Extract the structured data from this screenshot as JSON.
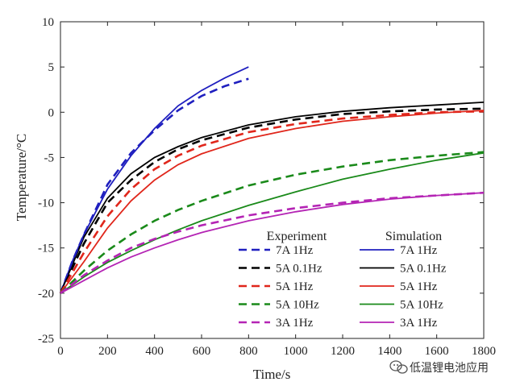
{
  "chart_data": {
    "type": "line",
    "title": "",
    "xlabel": "Time/s",
    "ylabel": "Temperature/°C",
    "xlim": [
      0,
      1800
    ],
    "ylim": [
      -25,
      10
    ],
    "xticks": [
      0,
      200,
      400,
      600,
      800,
      1000,
      1200,
      1400,
      1600,
      1800
    ],
    "yticks": [
      -25,
      -20,
      -15,
      -10,
      -5,
      0,
      5,
      10
    ],
    "grid": false,
    "legend": {
      "placement": "bottom-right",
      "experiment_title": "Experiment",
      "simulation_title": "Simulation"
    },
    "series": [
      {
        "name": "7A 1Hz",
        "group": "Experiment",
        "color": "#1f1fbf",
        "style": "dashed",
        "x": [
          0,
          50,
          100,
          200,
          300,
          400,
          500,
          600,
          700,
          800
        ],
        "y": [
          -20,
          -16.5,
          -13.5,
          -8.0,
          -4.5,
          -2.0,
          0.2,
          1.8,
          2.9,
          3.7
        ]
      },
      {
        "name": "5A 0.1Hz",
        "group": "Experiment",
        "color": "#000000",
        "style": "dashed",
        "x": [
          0,
          100,
          200,
          300,
          400,
          500,
          600,
          800,
          1000,
          1200,
          1400,
          1600,
          1800
        ],
        "y": [
          -20,
          -14.5,
          -10.0,
          -7.5,
          -5.5,
          -4.1,
          -3.1,
          -1.7,
          -0.8,
          -0.2,
          0.1,
          0.3,
          0.4
        ]
      },
      {
        "name": "5A 1Hz",
        "group": "Experiment",
        "color": "#e0261b",
        "style": "dashed",
        "x": [
          0,
          100,
          200,
          300,
          400,
          500,
          600,
          800,
          1000,
          1200,
          1400,
          1600,
          1800
        ],
        "y": [
          -20,
          -15.5,
          -11.5,
          -8.5,
          -6.3,
          -4.8,
          -3.7,
          -2.2,
          -1.3,
          -0.7,
          -0.3,
          0.0,
          0.1
        ]
      },
      {
        "name": "5A 10Hz",
        "group": "Experiment",
        "color": "#1a8a1a",
        "style": "dashed",
        "x": [
          0,
          100,
          200,
          300,
          400,
          500,
          600,
          800,
          1000,
          1200,
          1400,
          1600,
          1800
        ],
        "y": [
          -20,
          -17.5,
          -15.3,
          -13.5,
          -12.0,
          -10.8,
          -9.8,
          -8.1,
          -6.9,
          -6.0,
          -5.3,
          -4.8,
          -4.4
        ]
      },
      {
        "name": "3A 1Hz",
        "group": "Experiment",
        "color": "#b424b4",
        "style": "dashed",
        "x": [
          0,
          100,
          200,
          300,
          400,
          500,
          600,
          800,
          1000,
          1200,
          1400,
          1600,
          1800
        ],
        "y": [
          -20,
          -18.0,
          -16.4,
          -15.0,
          -14.0,
          -13.2,
          -12.5,
          -11.4,
          -10.6,
          -10.0,
          -9.5,
          -9.2,
          -8.9
        ]
      },
      {
        "name": "7A 1Hz",
        "group": "Simulation",
        "color": "#1f1fbf",
        "style": "solid",
        "x": [
          0,
          50,
          100,
          200,
          300,
          400,
          500,
          600,
          700,
          800
        ],
        "y": [
          -20,
          -16.5,
          -13.5,
          -8.5,
          -4.8,
          -1.8,
          0.7,
          2.4,
          3.8,
          5.0
        ]
      },
      {
        "name": "5A 0.1Hz",
        "group": "Simulation",
        "color": "#000000",
        "style": "solid",
        "x": [
          0,
          100,
          200,
          300,
          400,
          500,
          600,
          800,
          1000,
          1200,
          1400,
          1600,
          1800
        ],
        "y": [
          -20,
          -13.8,
          -9.5,
          -6.8,
          -5.0,
          -3.8,
          -2.8,
          -1.4,
          -0.5,
          0.1,
          0.5,
          0.8,
          1.1
        ]
      },
      {
        "name": "5A 1Hz",
        "group": "Simulation",
        "color": "#e0261b",
        "style": "solid",
        "x": [
          0,
          100,
          200,
          300,
          400,
          500,
          600,
          800,
          1000,
          1200,
          1400,
          1600,
          1800
        ],
        "y": [
          -20,
          -16.5,
          -12.8,
          -9.8,
          -7.5,
          -5.8,
          -4.6,
          -2.9,
          -1.8,
          -1.0,
          -0.5,
          -0.1,
          0.2
        ]
      },
      {
        "name": "5A 10Hz",
        "group": "Simulation",
        "color": "#1a8a1a",
        "style": "solid",
        "x": [
          0,
          100,
          200,
          300,
          400,
          500,
          600,
          800,
          1000,
          1200,
          1400,
          1600,
          1800
        ],
        "y": [
          -20,
          -18.2,
          -16.6,
          -15.3,
          -14.1,
          -13.0,
          -12.0,
          -10.3,
          -8.8,
          -7.4,
          -6.3,
          -5.3,
          -4.5
        ]
      },
      {
        "name": "3A 1Hz",
        "group": "Simulation",
        "color": "#b424b4",
        "style": "solid",
        "x": [
          0,
          100,
          200,
          300,
          400,
          500,
          600,
          800,
          1000,
          1200,
          1400,
          1600,
          1800
        ],
        "y": [
          -20,
          -18.6,
          -17.2,
          -16.0,
          -15.0,
          -14.1,
          -13.3,
          -12.0,
          -11.0,
          -10.2,
          -9.6,
          -9.2,
          -8.9
        ]
      }
    ]
  },
  "watermark": {
    "icon": "wechat-icon",
    "text": "低温锂电池应用"
  }
}
